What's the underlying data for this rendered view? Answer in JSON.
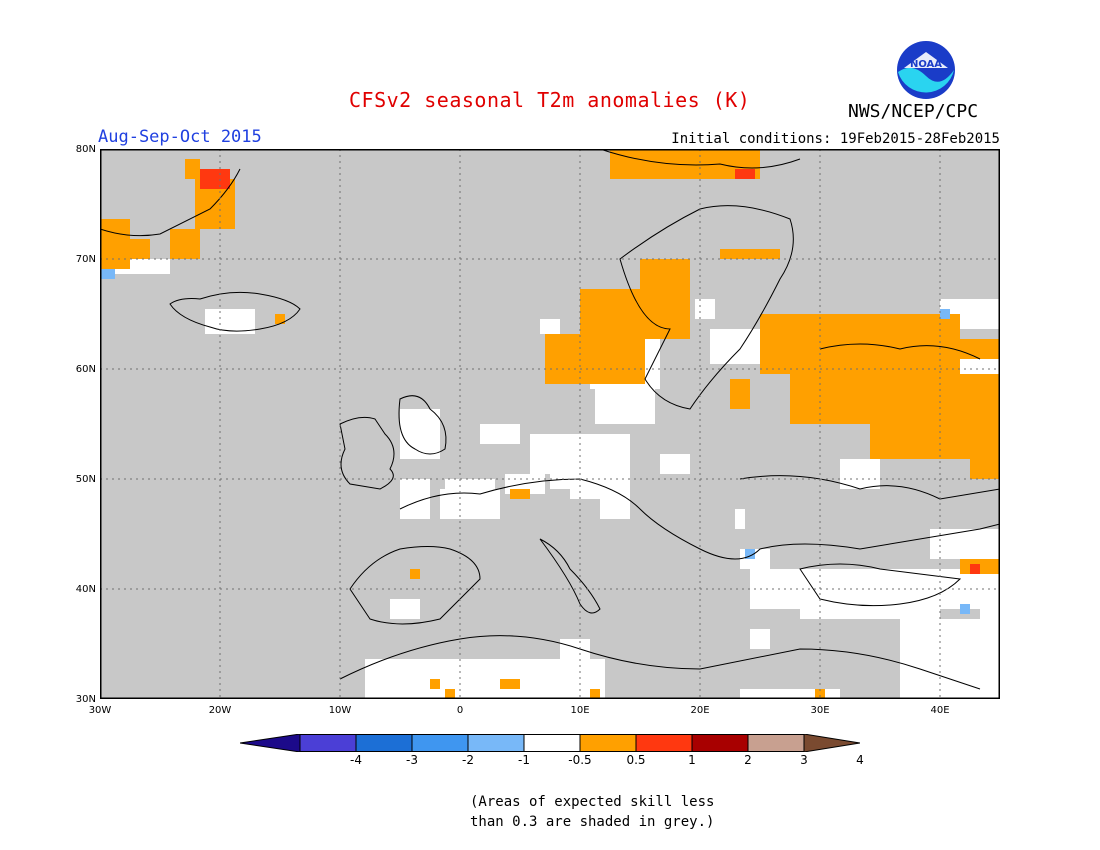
{
  "title": "CFSv2 seasonal T2m anomalies (K)",
  "period": "Aug-Sep-Oct 2015",
  "initial_conditions": "Initial conditions: 19Feb2015-28Feb2015",
  "agency": "NWS/NCEP/CPC",
  "logo_text": "NOAA",
  "note_line1": "(Areas of expected skill less",
  "note_line2": "than 0.3 are shaded in grey.)",
  "lat_labels": [
    "80N",
    "70N",
    "60N",
    "50N",
    "40N",
    "30N"
  ],
  "lon_labels": [
    "30W",
    "20W",
    "10W",
    "0",
    "10E",
    "20E",
    "30E",
    "40E"
  ],
  "colorbar": {
    "labels": [
      "-4",
      "-3",
      "-2",
      "-1",
      "-0.5",
      "0.5",
      "1",
      "2",
      "3",
      "4"
    ],
    "colors": [
      "#1c0a8a",
      "#4b3fd6",
      "#1c6fd6",
      "#3f96f0",
      "#78b8f8",
      "#ffffff",
      "#ffa000",
      "#ff3810",
      "#a80000",
      "#c8a090",
      "#7a4a30"
    ]
  },
  "colors": {
    "grey_low_skill": "#c8c8c8",
    "warm_0_5_to_1": "#ffa000",
    "warm_1_to_2": "#ff3810",
    "cool_minus_1_to_minus_0_5": "#78b8f8"
  }
}
